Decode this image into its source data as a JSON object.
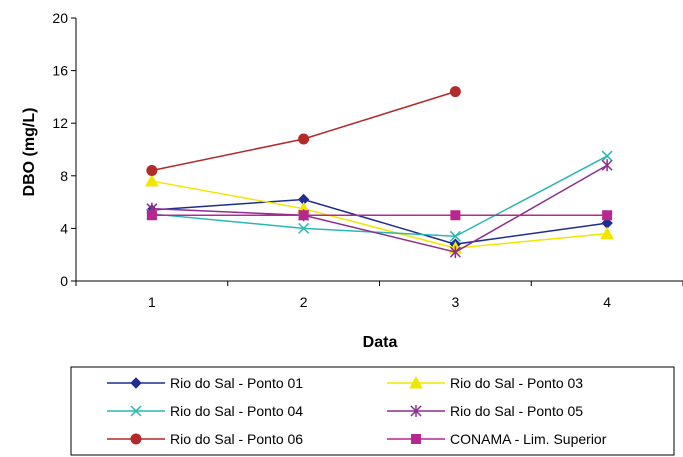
{
  "chart_data": {
    "type": "line",
    "title": "",
    "xlabel": "Data",
    "ylabel": "DBO (mg/L)",
    "categories": [
      "1",
      "2",
      "3",
      "4"
    ],
    "ylim": [
      0,
      20
    ],
    "yticks": [
      "0",
      "4",
      "8",
      "12",
      "16",
      "20"
    ],
    "grid": false,
    "legend_position": "bottom",
    "series": [
      {
        "name": "Rio do Sal - Ponto 01",
        "values": [
          5.4,
          6.2,
          2.8,
          4.4
        ],
        "color": "#1f2d8f",
        "marker": "diamond"
      },
      {
        "name": "Rio do Sal - Ponto 03",
        "values": [
          7.6,
          5.5,
          2.5,
          3.6
        ],
        "color": "#f2e600",
        "marker": "triangle"
      },
      {
        "name": "Rio do Sal - Ponto 04",
        "values": [
          5.1,
          4.0,
          3.4,
          9.5
        ],
        "color": "#2ab7b2",
        "marker": "x"
      },
      {
        "name": "Rio do Sal - Ponto 05",
        "values": [
          5.5,
          5.0,
          2.2,
          8.8
        ],
        "color": "#8b2f8f",
        "marker": "asterisk"
      },
      {
        "name": "Rio do Sal - Ponto 06",
        "values": [
          8.4,
          10.8,
          14.4,
          null
        ],
        "color": "#b22a2a",
        "marker": "circle"
      },
      {
        "name": "CONAMA - Lim. Superior",
        "values": [
          5.0,
          5.0,
          5.0,
          5.0
        ],
        "color": "#b8278f",
        "marker": "square"
      }
    ]
  }
}
